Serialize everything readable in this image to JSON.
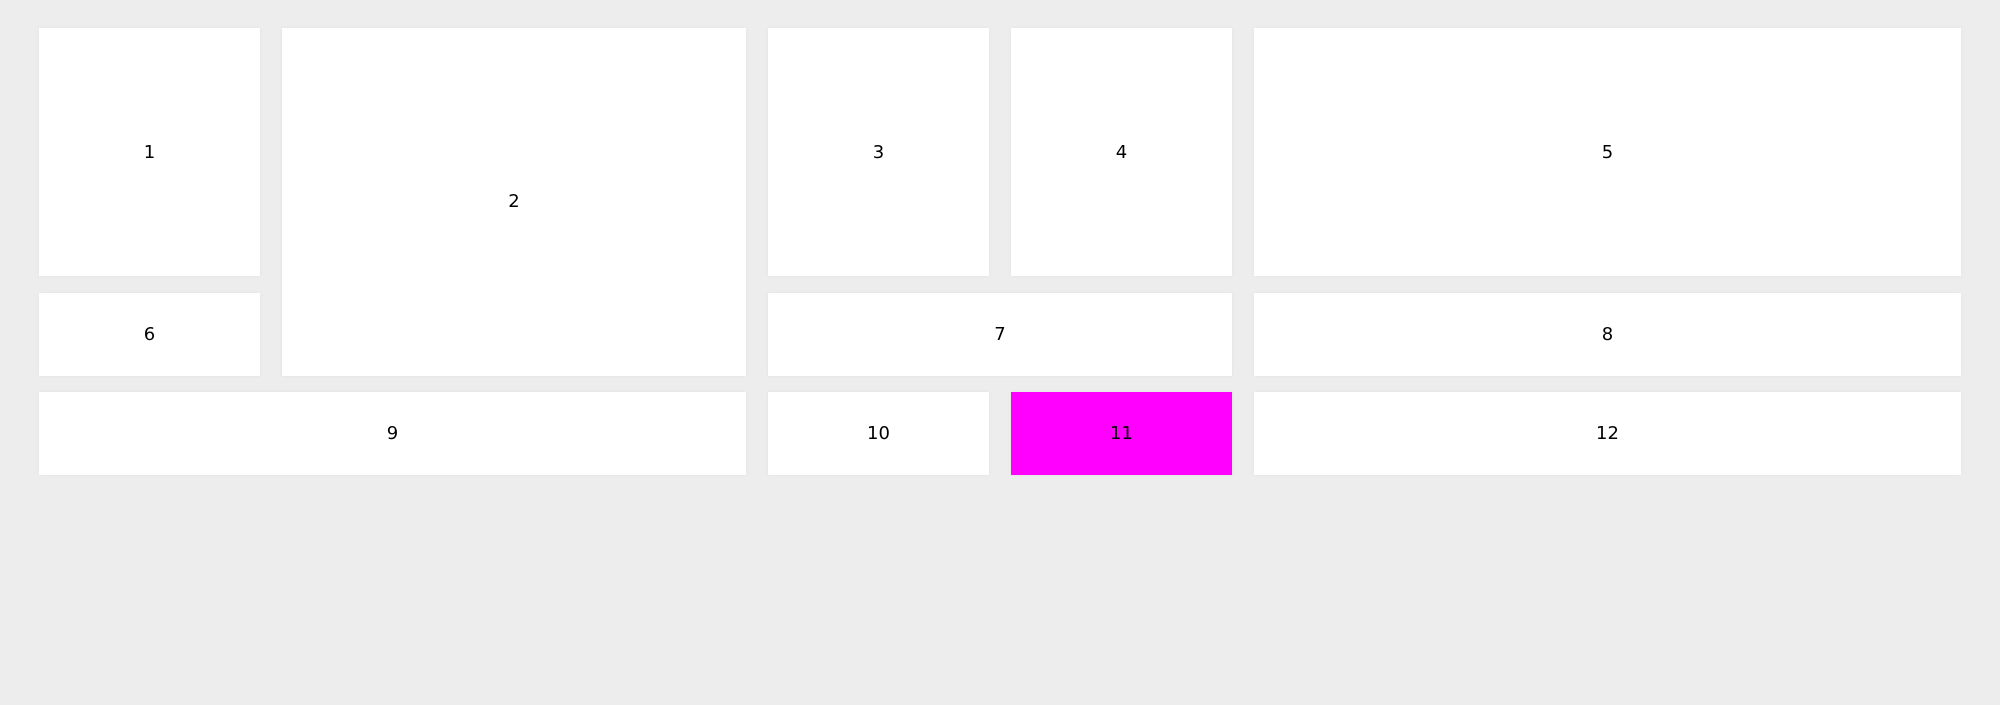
{
  "highlight_color": "#ff00ff",
  "tiles": [
    {
      "label": "1"
    },
    {
      "label": "2"
    },
    {
      "label": "3"
    },
    {
      "label": "4"
    },
    {
      "label": "5"
    },
    {
      "label": "6"
    },
    {
      "label": "7"
    },
    {
      "label": "8"
    },
    {
      "label": "9"
    },
    {
      "label": "10"
    },
    {
      "label": "11",
      "highlighted": true
    },
    {
      "label": "12"
    }
  ]
}
